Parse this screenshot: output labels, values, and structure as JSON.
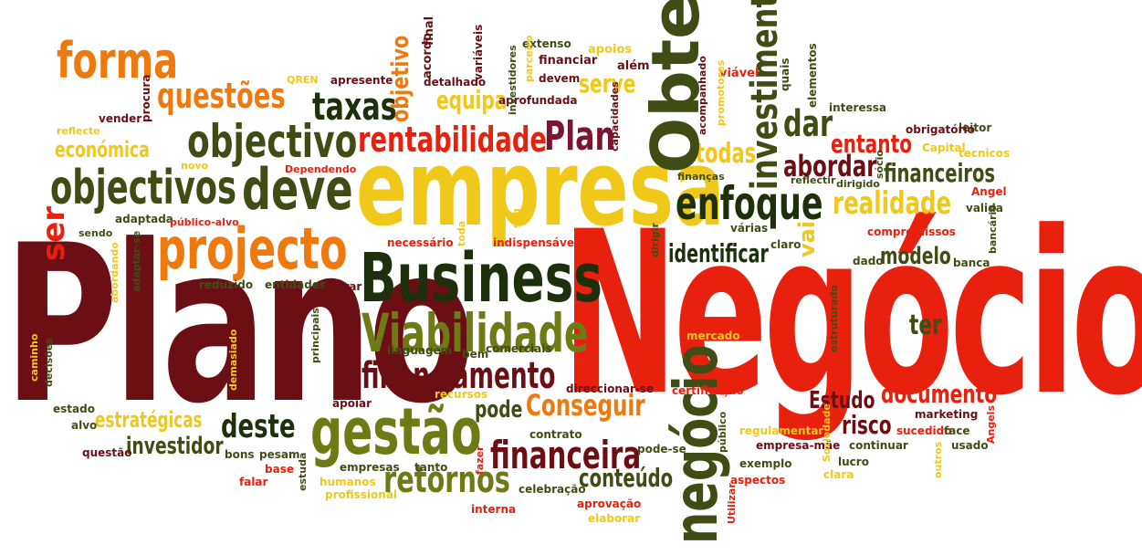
{
  "words": [
    {
      "text": "Plano",
      "color": "#6b0f14"
    },
    {
      "text": "Negócios",
      "color": "#e8200e"
    },
    {
      "text": "empresa",
      "color": "#f0c81a"
    },
    {
      "text": "Business",
      "color": "#1e2f0c"
    },
    {
      "text": "Viabilidade",
      "color": "#6e7a14"
    },
    {
      "text": "projecto",
      "color": "#ee7a0f"
    },
    {
      "text": "deve",
      "color": "#3f4d14"
    },
    {
      "text": "objectivos",
      "color": "#3f4d14"
    },
    {
      "text": "objectivo",
      "color": "#3f4d14"
    },
    {
      "text": "gestão",
      "color": "#6e7a14"
    },
    {
      "text": "forma",
      "color": "#ee7a0f"
    },
    {
      "text": "questões",
      "color": "#ee7a0f"
    },
    {
      "text": "rentabilidade",
      "color": "#e8200e"
    },
    {
      "text": "Obter",
      "color": "#3f4d14"
    },
    {
      "text": "Plan",
      "color": "#7a1430"
    },
    {
      "text": "taxas",
      "color": "#1e2f0c"
    },
    {
      "text": "investimento",
      "color": "#3f4d14"
    },
    {
      "text": "enfoque",
      "color": "#1e2f0c"
    },
    {
      "text": "realidade",
      "color": "#f0c81a"
    },
    {
      "text": "financiamento",
      "color": "#6b0f14"
    },
    {
      "text": "negócio",
      "color": "#3f4d14"
    },
    {
      "text": "financeira",
      "color": "#6b0f14"
    },
    {
      "text": "retornos",
      "color": "#6e7a14"
    },
    {
      "text": "deste",
      "color": "#1e2f0c"
    },
    {
      "text": "Conseguir",
      "color": "#ee7a0f"
    },
    {
      "text": "documento",
      "color": "#e8200e"
    },
    {
      "text": "Estudo",
      "color": "#6b0f14"
    },
    {
      "text": "risco",
      "color": "#6b0f14"
    },
    {
      "text": "modelo",
      "color": "#3f4d14"
    },
    {
      "text": "identificar",
      "color": "#1e2f0c"
    },
    {
      "text": "financeiros",
      "color": "#3f4d14"
    },
    {
      "text": "abordar",
      "color": "#6b0f14"
    },
    {
      "text": "entanto",
      "color": "#e8200e"
    },
    {
      "text": "dar",
      "color": "#3f4d14"
    },
    {
      "text": "todas",
      "color": "#f0c81a"
    },
    {
      "text": "serve",
      "color": "#f0c81a"
    },
    {
      "text": "equipa",
      "color": "#f0c81a"
    },
    {
      "text": "económica",
      "color": "#f0c81a"
    },
    {
      "text": "estratégicas",
      "color": "#f0c81a"
    },
    {
      "text": "investidor",
      "color": "#3f4d14"
    },
    {
      "text": "conteúdo",
      "color": "#3f4d14"
    },
    {
      "text": "pode",
      "color": "#3f4d14"
    },
    {
      "text": "ter",
      "color": "#3f4d14"
    },
    {
      "text": "ser",
      "color": "#e8200e"
    },
    {
      "text": "vai",
      "color": "#f0c81a"
    },
    {
      "text": "objetivo",
      "color": "#ee7a0f"
    },
    {
      "text": "acordo",
      "color": "#6b0f14"
    },
    {
      "text": "final",
      "color": "#6b0f14"
    },
    {
      "text": "variáveis",
      "color": "#6b0f14"
    },
    {
      "text": "extenso",
      "color": "#3f4d14"
    },
    {
      "text": "apoios",
      "color": "#f0c81a"
    },
    {
      "text": "financiar",
      "color": "#6b0f14"
    },
    {
      "text": "além",
      "color": "#6b0f14"
    },
    {
      "text": "viável",
      "color": "#e8200e"
    },
    {
      "text": "quais",
      "color": "#3f4d14"
    },
    {
      "text": "elementos",
      "color": "#3f4d14"
    },
    {
      "text": "interessa",
      "color": "#3f4d14"
    },
    {
      "text": "leitor",
      "color": "#3f4d14"
    },
    {
      "text": "obrigatório",
      "color": "#6b0f14"
    },
    {
      "text": "Capital",
      "color": "#f0c81a"
    },
    {
      "text": "tecnicos",
      "color": "#f0c81a"
    },
    {
      "text": "QREN",
      "color": "#f0c81a"
    },
    {
      "text": "apresente",
      "color": "#6b0f14"
    },
    {
      "text": "detalhado",
      "color": "#6b0f14"
    },
    {
      "text": "devem",
      "color": "#6b0f14"
    },
    {
      "text": "aprofundada",
      "color": "#6b0f14"
    },
    {
      "text": "parceiro",
      "color": "#f0c81a"
    },
    {
      "text": "investidores",
      "color": "#3f4d14"
    },
    {
      "text": "capacidades",
      "color": "#6b0f14"
    },
    {
      "text": "acompanhado",
      "color": "#6b0f14"
    },
    {
      "text": "promotores",
      "color": "#f0c81a"
    },
    {
      "text": "procura",
      "color": "#6b0f14"
    },
    {
      "text": "vender",
      "color": "#6b0f14"
    },
    {
      "text": "reflecte",
      "color": "#f0c81a"
    },
    {
      "text": "novo",
      "color": "#f0c81a"
    },
    {
      "text": "Dependendo",
      "color": "#e8200e"
    },
    {
      "text": "adaptada",
      "color": "#3f4d14"
    },
    {
      "text": "público-alvo",
      "color": "#e8200e"
    },
    {
      "text": "sendo",
      "color": "#3f4d14"
    },
    {
      "text": "abordando",
      "color": "#f0c81a"
    },
    {
      "text": "adaptar-se",
      "color": "#3f4d14"
    },
    {
      "text": "reduzido",
      "color": "#3f4d14"
    },
    {
      "text": "entidades",
      "color": "#3f4d14"
    },
    {
      "text": "entrar",
      "color": "#6b0f14"
    },
    {
      "text": "necessário",
      "color": "#e8200e"
    },
    {
      "text": "toda",
      "color": "#f0c81a"
    },
    {
      "text": "sim",
      "color": "#f0c81a"
    },
    {
      "text": "indispensável",
      "color": "#e8200e"
    },
    {
      "text": "dirigir",
      "color": "#3f4d14"
    },
    {
      "text": "claro",
      "color": "#3f4d14"
    },
    {
      "text": "várias",
      "color": "#3f4d14"
    },
    {
      "text": "compromissos",
      "color": "#e8200e"
    },
    {
      "text": "dado",
      "color": "#3f4d14"
    },
    {
      "text": "banca",
      "color": "#3f4d14"
    },
    {
      "text": "bancário",
      "color": "#3f4d14"
    },
    {
      "text": "valida",
      "color": "#3f4d14"
    },
    {
      "text": "Angel",
      "color": "#e8200e"
    },
    {
      "text": "sócio",
      "color": "#3f4d14"
    },
    {
      "text": "dirigido",
      "color": "#3f4d14"
    },
    {
      "text": "reflectir",
      "color": "#3f4d14"
    },
    {
      "text": "finanças",
      "color": "#3f4d14"
    },
    {
      "text": "estruturado",
      "color": "#3f4d14"
    },
    {
      "text": "mercado",
      "color": "#f0c81a"
    },
    {
      "text": "certificação",
      "color": "#e8200e"
    },
    {
      "text": "direccionar-se",
      "color": "#6b0f14"
    },
    {
      "text": "recursos",
      "color": "#f0c81a"
    },
    {
      "text": "linguagem",
      "color": "#3f4d14"
    },
    {
      "text": "bem",
      "color": "#3f4d14"
    },
    {
      "text": "comerciais",
      "color": "#3f4d14"
    },
    {
      "text": "principais",
      "color": "#3f4d14"
    },
    {
      "text": "demasiado",
      "color": "#f0c81a"
    },
    {
      "text": "caminho",
      "color": "#f0c81a"
    },
    {
      "text": "decisões",
      "color": "#3f4d14"
    },
    {
      "text": "estado",
      "color": "#3f4d14"
    },
    {
      "text": "alvo",
      "color": "#3f4d14"
    },
    {
      "text": "apoiar",
      "color": "#6b0f14"
    },
    {
      "text": "contrato",
      "color": "#3f4d14"
    },
    {
      "text": "fazer",
      "color": "#e8200e"
    },
    {
      "text": "pode-se",
      "color": "#3f4d14"
    },
    {
      "text": "público",
      "color": "#3f4d14"
    },
    {
      "text": "regulamentar",
      "color": "#f0c81a"
    },
    {
      "text": "empresa-mãe",
      "color": "#6b0f14"
    },
    {
      "text": "Sociedade",
      "color": "#f0c81a"
    },
    {
      "text": "sucedido",
      "color": "#e8200e"
    },
    {
      "text": "marketing",
      "color": "#6b0f14"
    },
    {
      "text": "face",
      "color": "#3f4d14"
    },
    {
      "text": "usado",
      "color": "#3f4d14"
    },
    {
      "text": "Angels",
      "color": "#e8200e"
    },
    {
      "text": "outros",
      "color": "#f0c81a"
    },
    {
      "text": "continuar",
      "color": "#3f4d14"
    },
    {
      "text": "lucro",
      "color": "#3f4d14"
    },
    {
      "text": "clara",
      "color": "#f0c81a"
    },
    {
      "text": "exemplo",
      "color": "#3f4d14"
    },
    {
      "text": "aspectos",
      "color": "#e8200e"
    },
    {
      "text": "Utilizar",
      "color": "#e8200e"
    },
    {
      "text": "elaborar",
      "color": "#f0c81a"
    },
    {
      "text": "aprovação",
      "color": "#e8200e"
    },
    {
      "text": "celebração",
      "color": "#3f4d14"
    },
    {
      "text": "interna",
      "color": "#e8200e"
    },
    {
      "text": "empresas",
      "color": "#3f4d14"
    },
    {
      "text": "tanto",
      "color": "#3f4d14"
    },
    {
      "text": "humanos",
      "color": "#f0c81a"
    },
    {
      "text": "profissional",
      "color": "#f0c81a"
    },
    {
      "text": "estuda",
      "color": "#3f4d14"
    },
    {
      "text": "base",
      "color": "#e8200e"
    },
    {
      "text": "pesam",
      "color": "#3f4d14"
    },
    {
      "text": "bons",
      "color": "#3f4d14"
    },
    {
      "text": "falar",
      "color": "#e8200e"
    },
    {
      "text": "questão",
      "color": "#6b0f14"
    }
  ]
}
